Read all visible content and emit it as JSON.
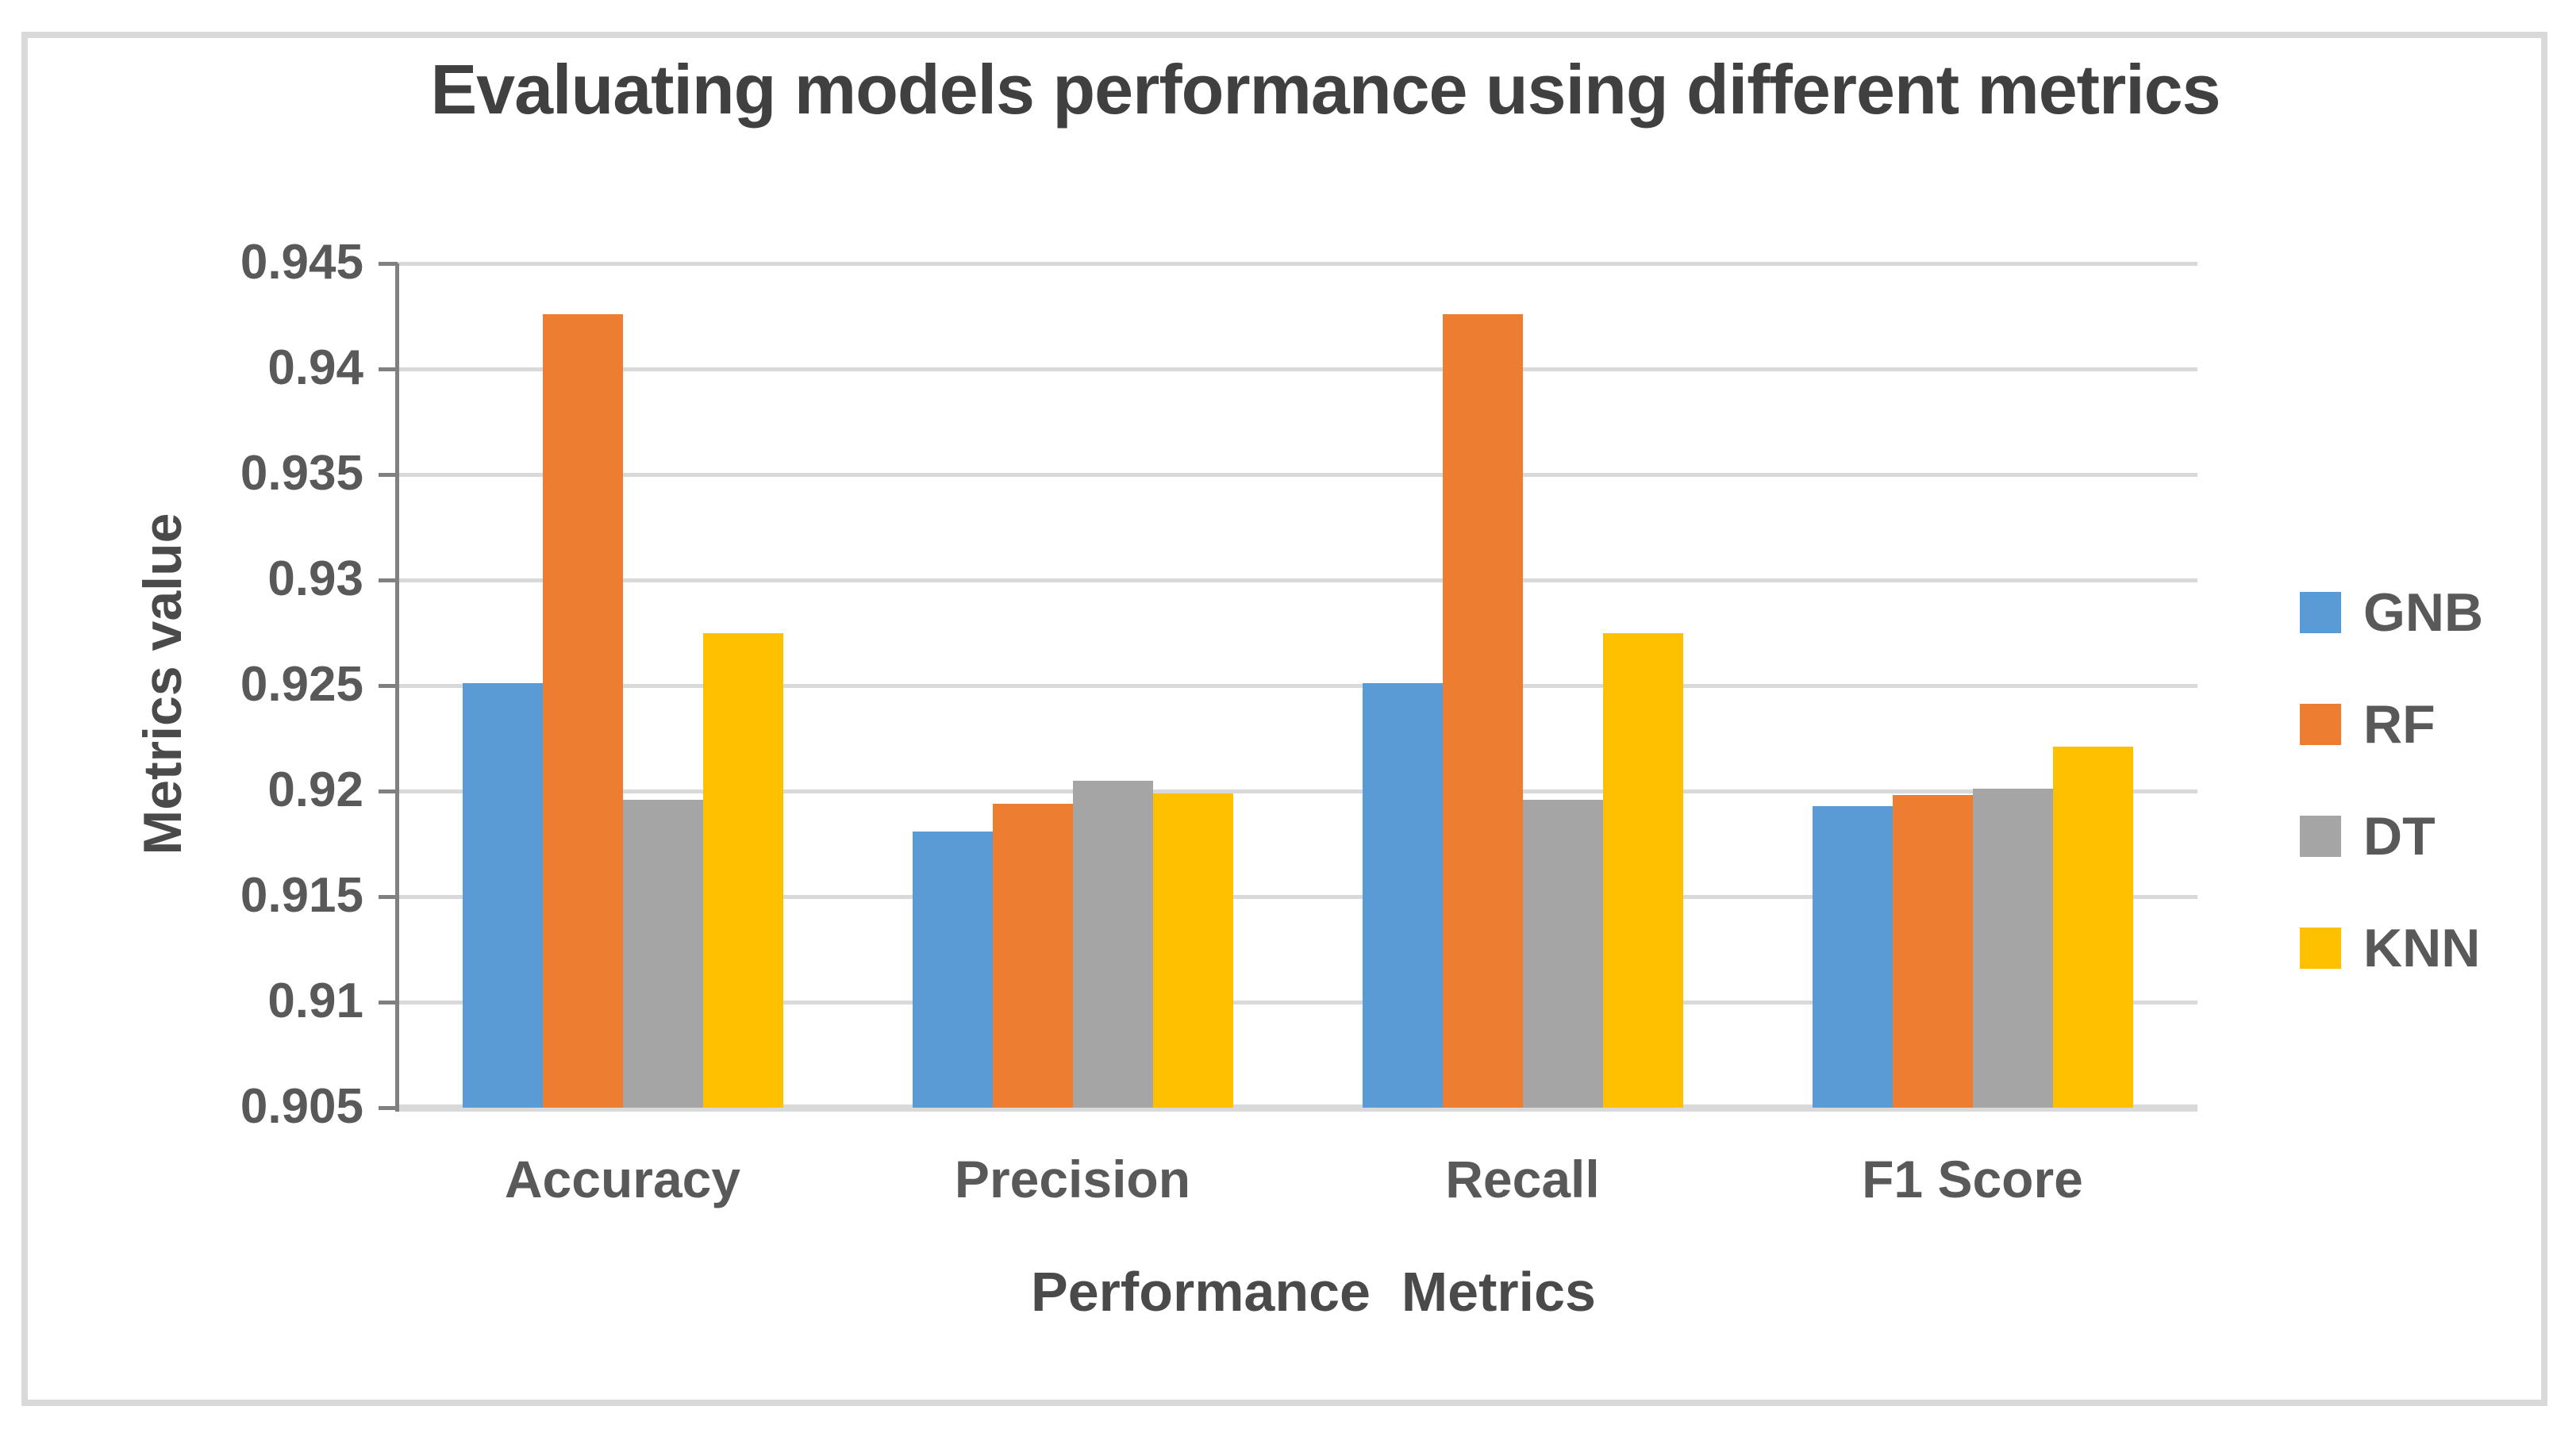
{
  "chart_data": {
    "type": "bar",
    "title": "Evaluating models performance using different metrics",
    "xlabel": "Performance  Metrics",
    "ylabel": "Metrics value",
    "categories": [
      "Accuracy",
      "Precision",
      "Recall",
      "F1 Score"
    ],
    "series": [
      {
        "name": "GNB",
        "color": "#5B9BD5",
        "values": [
          0.9251,
          0.9181,
          0.9251,
          0.9193
        ]
      },
      {
        "name": "RF",
        "color": "#ED7D31",
        "values": [
          0.9426,
          0.9194,
          0.9426,
          0.9198
        ]
      },
      {
        "name": "DT",
        "color": "#A5A5A5",
        "values": [
          0.9196,
          0.9205,
          0.9196,
          0.9201
        ]
      },
      {
        "name": "KNN",
        "color": "#FFC000",
        "values": [
          0.9275,
          0.9199,
          0.9275,
          0.9221
        ]
      }
    ],
    "ylim": [
      0.905,
      0.945
    ],
    "ytick_step": 0.005,
    "ytick_labels": [
      "0.945",
      "0.94",
      "0.935",
      "0.93",
      "0.925",
      "0.92",
      "0.915",
      "0.91",
      "0.905"
    ],
    "grid": true,
    "legend_position": "right",
    "legend_entries": [
      "GNB",
      "RF",
      "DT",
      "KNN"
    ]
  },
  "style_colors": {
    "gridline": "#d9d9d9",
    "axis_line": "#808080",
    "category_axis_line": "#d9d9d9",
    "frame_border": "#d9d9d9",
    "title_text": "#404040",
    "label_text": "#595959"
  }
}
